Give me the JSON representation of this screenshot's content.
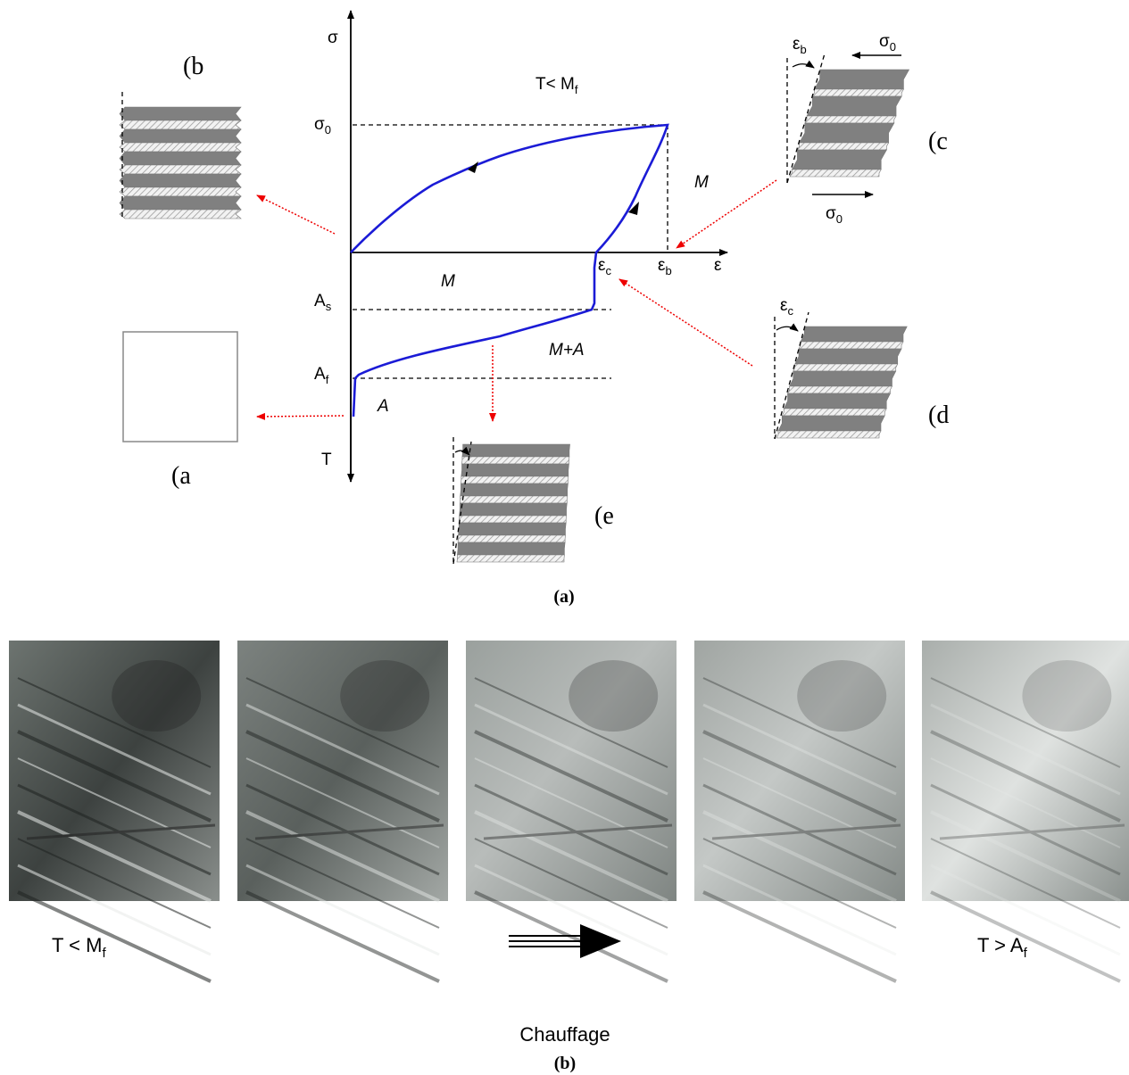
{
  "diagram": {
    "axis_stress": "σ",
    "axis_strain": "ε",
    "axis_temperature": "T",
    "stress_level": {
      "base": "σ",
      "sub": "0"
    },
    "condition": {
      "base": "T< M",
      "sub": "f"
    },
    "strain_b": {
      "base": "ε",
      "sub": "b"
    },
    "strain_c": {
      "base": "ε",
      "sub": "c"
    },
    "temp_as": {
      "base": "A",
      "sub": "s"
    },
    "temp_af": {
      "base": "A",
      "sub": "f"
    },
    "region_upper_m": "M",
    "region_lower_m": "M",
    "region_m_a": "M+A",
    "region_a": "A",
    "inset_b": "(b",
    "inset_c": "(c",
    "inset_d": "(d",
    "inset_a": "(a",
    "inset_e": "(e",
    "inset_c_angle": {
      "base": "ε",
      "sub": "b"
    },
    "inset_c_top_stress": {
      "base": "σ",
      "sub": "0"
    },
    "inset_c_bottom_stress": {
      "base": "σ",
      "sub": "0"
    },
    "inset_d_angle": {
      "base": "ε",
      "sub": "c"
    },
    "caption": "(a)"
  },
  "photos": {
    "left_label": {
      "base": "T < M",
      "sub": "f"
    },
    "right_label": {
      "base": "T > A",
      "sub": "f"
    },
    "arrow_label": "Chauffage",
    "caption": "(b)"
  }
}
